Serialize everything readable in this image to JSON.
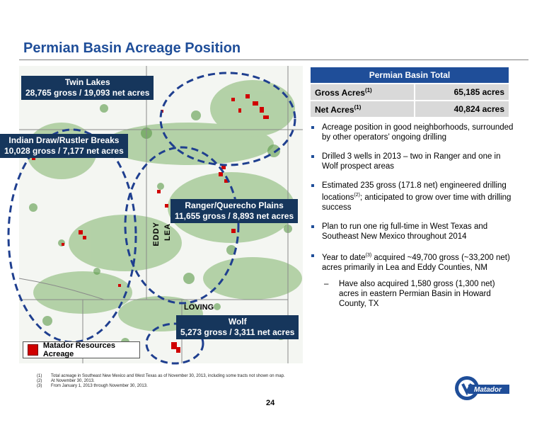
{
  "title": "Permian Basin Acreage Position",
  "map": {
    "callouts": {
      "twin_lakes": {
        "name": "Twin Lakes",
        "detail": "28,765 gross / 19,093 net acres"
      },
      "indian_draw": {
        "name": "Indian Draw/Rustler Breaks",
        "detail": "10,028 gross / 7,177 net acres"
      },
      "ranger": {
        "name": "Ranger/Querecho Plains",
        "detail": "11,655 gross / 8,893 net acres"
      },
      "wolf": {
        "name": "Wolf",
        "detail": "5,273 gross / 3,311 net acres"
      }
    },
    "counties": {
      "eddy": "EDDY",
      "lea": "LEA",
      "loving": "LOVING"
    },
    "legend": "Matador Resources Acreage",
    "colors": {
      "acreage": "#d00000",
      "callout_bg": "#16365c",
      "circle": "#1f3f8f"
    }
  },
  "table": {
    "header": "Permian Basin Total",
    "rows": [
      {
        "label": "Gross Acres",
        "sup": "(1)",
        "value": "65,185 acres"
      },
      {
        "label": "Net Acres",
        "sup": "(1)",
        "value": "40,824 acres"
      }
    ]
  },
  "bullets": {
    "b1": "Acreage position in good neighborhoods, surrounded by other operators’ ongoing drilling",
    "b2": "Drilled 3 wells in 2013 – two in Ranger and one in Wolf prospect areas",
    "b3_pre": "Estimated 235 gross (171.8 net) engineered drilling locations",
    "b3_sup": "(2)",
    "b3_post": "; anticipated to grow over time with drilling success",
    "b4": "Plan to run one rig full-time in West Texas and Southeast New Mexico throughout 2014",
    "b5_pre": "Year to date",
    "b5_sup": "(3)",
    "b5_post": " acquired ~49,700 gross (~33,200 net) acres primarily in Lea and Eddy Counties, NM",
    "sub_dash": "–",
    "sub1": "Have also acquired 1,580 gross (1,300 net) acres in eastern Permian Basin in Howard County, TX"
  },
  "footnotes": [
    {
      "n": "(1)",
      "text": "Total acreage in Southeast New Mexico and West Texas as of November 30, 2013, including some tracts not shown on map."
    },
    {
      "n": "(2)",
      "text": "At November 30, 2013."
    },
    {
      "n": "(3)",
      "text": "From January 1, 2013 through November 30, 2013."
    }
  ],
  "page_number": "24",
  "logo_text": "Matador"
}
